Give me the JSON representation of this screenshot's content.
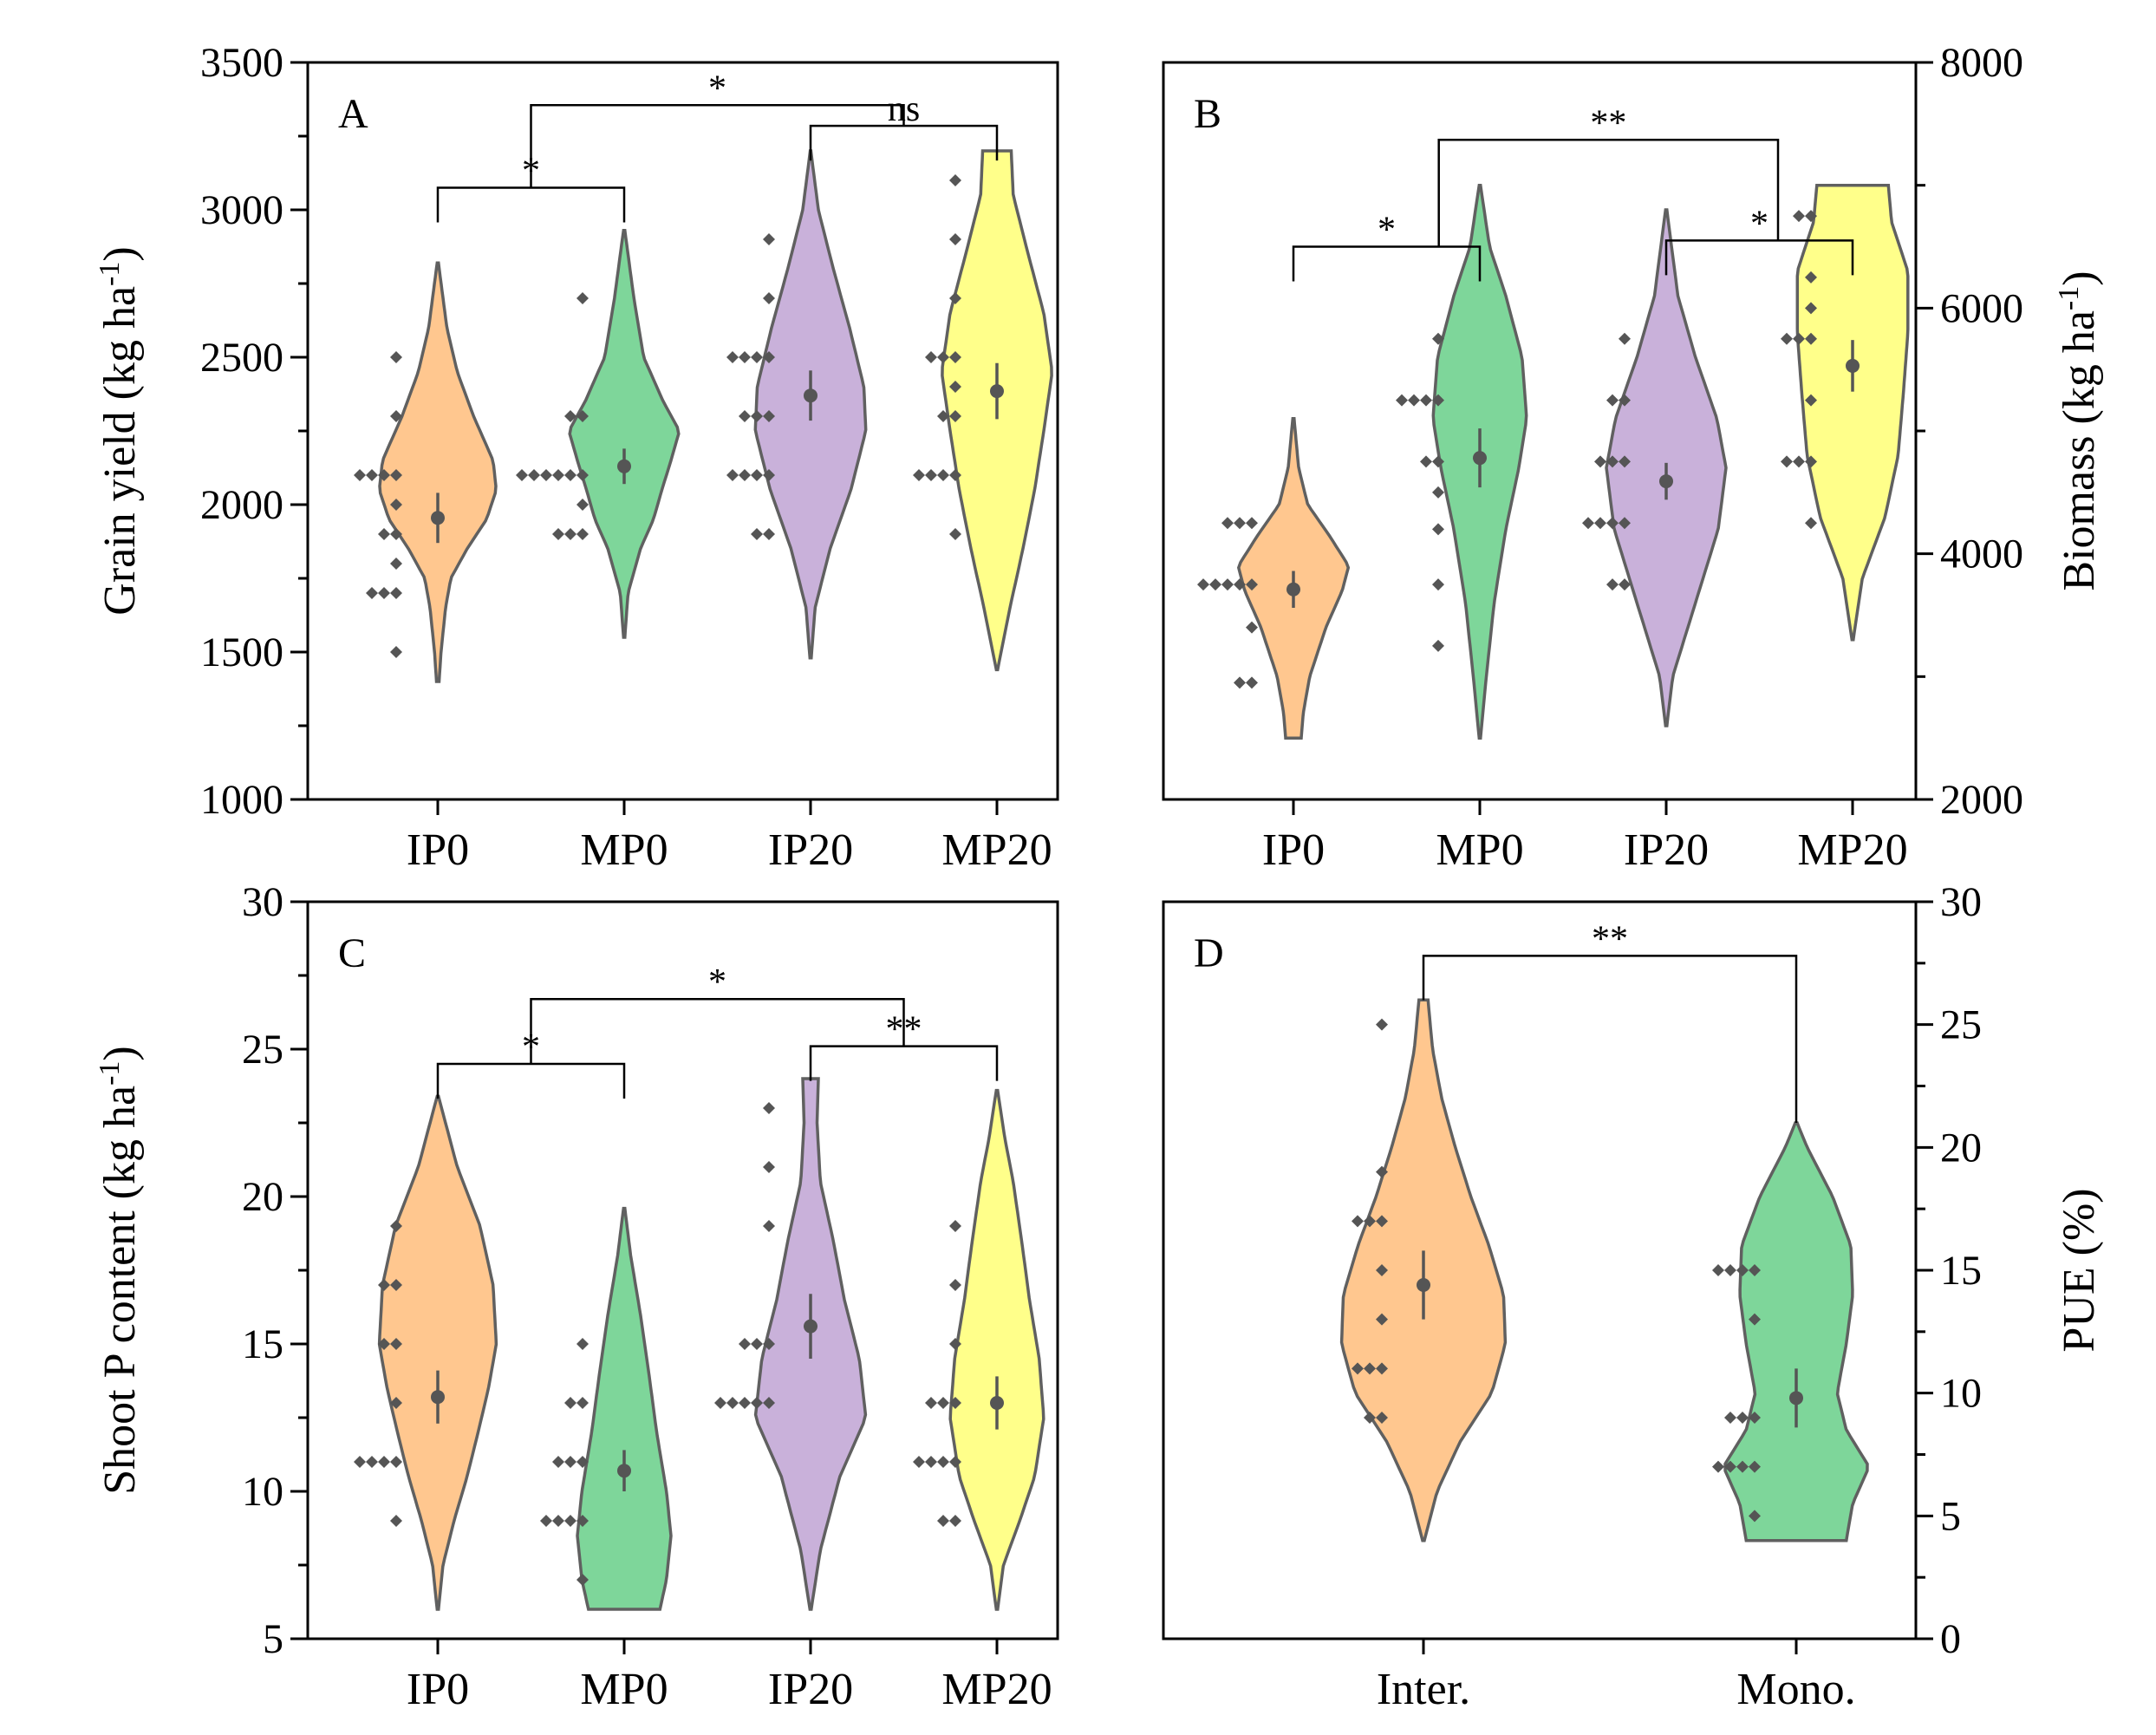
{
  "chart_data": [
    {
      "type": "violin",
      "panel": "A",
      "axis_side": "left",
      "ylabel": "Grain yield (kg ha-1)",
      "ylabel_base": "Grain yield (kg ha",
      "ylabel_sup": "-1",
      "ylabel_close": ")",
      "ylim": [
        1000,
        3500
      ],
      "yticks": [
        1000,
        1500,
        2000,
        2500,
        3000,
        3500
      ],
      "categories": [
        "IP0",
        "MP0",
        "IP20",
        "MP20"
      ],
      "colors": [
        "#FFC78F",
        "#7ED69A",
        "#C9B1DA",
        "#FFFF8A"
      ],
      "series": [
        {
          "name": "IP0",
          "mean": 1955,
          "err": 85,
          "vmin": 1400,
          "vmax": 2820,
          "points": [
            2500,
            2300,
            2100,
            2100,
            2100,
            2100,
            2000,
            1900,
            1900,
            1800,
            1700,
            1700,
            1700,
            1500
          ],
          "profile": [
            [
              1400,
              0.02
            ],
            [
              1500,
              0.05
            ],
            [
              1650,
              0.12
            ],
            [
              1750,
              0.2
            ],
            [
              1850,
              0.45
            ],
            [
              1950,
              0.75
            ],
            [
              2050,
              0.9
            ],
            [
              2150,
              0.85
            ],
            [
              2300,
              0.55
            ],
            [
              2450,
              0.3
            ],
            [
              2600,
              0.14
            ],
            [
              2820,
              0.01
            ]
          ]
        },
        {
          "name": "MP0",
          "mean": 2130,
          "err": 60,
          "vmin": 1550,
          "vmax": 2930,
          "points": [
            2700,
            2300,
            2300,
            2100,
            2100,
            2100,
            2100,
            2100,
            2100,
            2000,
            1900,
            1900,
            1900
          ],
          "profile": [
            [
              1550,
              0.01
            ],
            [
              1700,
              0.06
            ],
            [
              1850,
              0.25
            ],
            [
              1950,
              0.45
            ],
            [
              2050,
              0.58
            ],
            [
              2150,
              0.72
            ],
            [
              2250,
              0.85
            ],
            [
              2350,
              0.6
            ],
            [
              2500,
              0.3
            ],
            [
              2700,
              0.15
            ],
            [
              2930,
              0.01
            ]
          ]
        },
        {
          "name": "IP20",
          "mean": 2370,
          "err": 85,
          "vmin": 1480,
          "vmax": 3200,
          "points": [
            2900,
            2700,
            2500,
            2500,
            2500,
            2500,
            2300,
            2300,
            2300,
            2100,
            2100,
            2100,
            2100,
            1900,
            1900
          ],
          "profile": [
            [
              1480,
              0.01
            ],
            [
              1650,
              0.07
            ],
            [
              1850,
              0.3
            ],
            [
              2050,
              0.62
            ],
            [
              2250,
              0.85
            ],
            [
              2400,
              0.82
            ],
            [
              2600,
              0.6
            ],
            [
              2800,
              0.35
            ],
            [
              3000,
              0.12
            ],
            [
              3200,
              0.005
            ]
          ]
        },
        {
          "name": "MP20",
          "mean": 2385,
          "err": 95,
          "vmin": 1440,
          "vmax": 3200,
          "points": [
            3100,
            2900,
            2700,
            2500,
            2500,
            2500,
            2400,
            2300,
            2300,
            2100,
            2100,
            2100,
            2100,
            1900
          ],
          "profile": [
            [
              1440,
              0.01
            ],
            [
              1650,
              0.2
            ],
            [
              1850,
              0.4
            ],
            [
              2050,
              0.58
            ],
            [
              2250,
              0.72
            ],
            [
              2450,
              0.85
            ],
            [
              2650,
              0.72
            ],
            [
              2850,
              0.48
            ],
            [
              3050,
              0.25
            ],
            [
              3200,
              0.22
            ]
          ]
        }
      ],
      "significance": [
        {
          "type": "pair",
          "x1": 0,
          "x2": 1,
          "y": 3075,
          "label": "*"
        },
        {
          "type": "pair",
          "x1": 2,
          "x2": 3,
          "y": 3285,
          "label": "ns"
        },
        {
          "type": "group",
          "x1": 0.5,
          "x2": 2.5,
          "y": 3355,
          "y1": 3075,
          "y2": 3285,
          "label": "*"
        }
      ]
    },
    {
      "type": "violin",
      "panel": "B",
      "axis_side": "right",
      "ylabel": "Biomass (kg ha-1)",
      "ylabel_base": "Biomass (kg ha",
      "ylabel_sup": "-1",
      "ylabel_close": ")",
      "ylim": [
        2000,
        8000
      ],
      "yticks": [
        2000,
        4000,
        6000,
        8000
      ],
      "yminor": [
        3000,
        5000,
        7000
      ],
      "categories": [
        "IP0",
        "MP0",
        "IP20",
        "MP20"
      ],
      "colors": [
        "#FFC78F",
        "#7ED69A",
        "#C9B1DA",
        "#FFFF8A"
      ],
      "series": [
        {
          "name": "IP0",
          "mean": 3710,
          "err": 150,
          "vmin": 2500,
          "vmax": 5100,
          "points": [
            4250,
            4250,
            4250,
            3750,
            3750,
            3750,
            3750,
            3750,
            3400,
            2950,
            2950
          ],
          "profile": [
            [
              2500,
              0.12
            ],
            [
              2700,
              0.15
            ],
            [
              3000,
              0.25
            ],
            [
              3400,
              0.5
            ],
            [
              3700,
              0.75
            ],
            [
              3900,
              0.85
            ],
            [
              4150,
              0.55
            ],
            [
              4400,
              0.22
            ],
            [
              4700,
              0.08
            ],
            [
              5100,
              0.01
            ]
          ]
        },
        {
          "name": "MP0",
          "mean": 4780,
          "err": 240,
          "vmin": 2500,
          "vmax": 7000,
          "points": [
            5750,
            5250,
            5250,
            5250,
            5250,
            4750,
            4750,
            4500,
            4200,
            3750,
            3250
          ],
          "profile": [
            [
              2500,
              0.01
            ],
            [
              3000,
              0.1
            ],
            [
              3600,
              0.22
            ],
            [
              4200,
              0.4
            ],
            [
              4700,
              0.6
            ],
            [
              5100,
              0.72
            ],
            [
              5600,
              0.65
            ],
            [
              6100,
              0.4
            ],
            [
              6500,
              0.15
            ],
            [
              7000,
              0.01
            ]
          ]
        },
        {
          "name": "IP20",
          "mean": 4590,
          "err": 150,
          "vmin": 2600,
          "vmax": 6800,
          "points": [
            5750,
            5250,
            5250,
            4750,
            4750,
            4750,
            4250,
            4250,
            4250,
            4250,
            3750,
            3750
          ],
          "profile": [
            [
              2600,
              0.01
            ],
            [
              3000,
              0.1
            ],
            [
              3600,
              0.45
            ],
            [
              4200,
              0.8
            ],
            [
              4700,
              0.92
            ],
            [
              5100,
              0.78
            ],
            [
              5600,
              0.45
            ],
            [
              6100,
              0.18
            ],
            [
              6800,
              0.01
            ]
          ]
        },
        {
          "name": "MP20",
          "mean": 5530,
          "err": 210,
          "vmin": 3300,
          "vmax": 7000,
          "points": [
            6750,
            6750,
            6250,
            6000,
            5750,
            5750,
            5750,
            5250,
            4750,
            4750,
            4750,
            4250
          ],
          "profile": [
            [
              3300,
              0.01
            ],
            [
              3800,
              0.15
            ],
            [
              4300,
              0.5
            ],
            [
              4800,
              0.7
            ],
            [
              5300,
              0.78
            ],
            [
              5800,
              0.85
            ],
            [
              6300,
              0.85
            ],
            [
              6700,
              0.6
            ],
            [
              7000,
              0.55
            ]
          ]
        }
      ],
      "significance": [
        {
          "type": "pair",
          "x1": 0,
          "x2": 1,
          "y": 6500,
          "label": "*"
        },
        {
          "type": "pair",
          "x1": 2,
          "x2": 3,
          "y": 6550,
          "label": "*"
        },
        {
          "type": "group",
          "x1": 0.78,
          "x2": 2.6,
          "y": 7370,
          "y1": 6500,
          "y2": 6550,
          "label": "**"
        }
      ]
    },
    {
      "type": "violin",
      "panel": "C",
      "axis_side": "left",
      "ylabel": "Shoot P content (kg ha-1)",
      "ylabel_base": "Shoot P content (kg ha",
      "ylabel_sup": "-1",
      "ylabel_close": ")",
      "ylim": [
        5,
        30
      ],
      "yticks": [
        5,
        10,
        15,
        20,
        25,
        30
      ],
      "categories": [
        "IP0",
        "MP0",
        "IP20",
        "MP20"
      ],
      "colors": [
        "#FFC78F",
        "#7ED69A",
        "#C9B1DA",
        "#FFFF8A"
      ],
      "series": [
        {
          "name": "IP0",
          "mean": 13.2,
          "err": 0.9,
          "vmin": 6,
          "vmax": 23.4,
          "points": [
            19,
            17,
            17,
            15,
            15,
            13,
            11,
            11,
            11,
            11,
            9
          ],
          "profile": [
            [
              6,
              0.01
            ],
            [
              7.5,
              0.08
            ],
            [
              9,
              0.25
            ],
            [
              10.5,
              0.45
            ],
            [
              12,
              0.62
            ],
            [
              13.5,
              0.78
            ],
            [
              15,
              0.9
            ],
            [
              17,
              0.85
            ],
            [
              19,
              0.65
            ],
            [
              21,
              0.3
            ],
            [
              23.4,
              0.01
            ]
          ]
        },
        {
          "name": "MP0",
          "mean": 10.7,
          "err": 0.7,
          "vmin": 6,
          "vmax": 19.6,
          "points": [
            15,
            13,
            13,
            11,
            11,
            11,
            9,
            9,
            9,
            9,
            7
          ],
          "profile": [
            [
              6,
              0.55
            ],
            [
              7,
              0.65
            ],
            [
              8.5,
              0.72
            ],
            [
              10,
              0.65
            ],
            [
              12,
              0.5
            ],
            [
              14,
              0.38
            ],
            [
              16,
              0.25
            ],
            [
              18,
              0.1
            ],
            [
              19.6,
              0.01
            ]
          ]
        },
        {
          "name": "IP20",
          "mean": 15.6,
          "err": 1.1,
          "vmin": 6,
          "vmax": 24,
          "points": [
            23,
            21,
            19,
            15,
            15,
            15,
            13,
            13,
            13,
            13,
            13
          ],
          "profile": [
            [
              6,
              0.01
            ],
            [
              8,
              0.15
            ],
            [
              10.5,
              0.45
            ],
            [
              12.5,
              0.85
            ],
            [
              14.5,
              0.75
            ],
            [
              16.5,
              0.52
            ],
            [
              18.5,
              0.35
            ],
            [
              20.5,
              0.15
            ],
            [
              22.5,
              0.1
            ],
            [
              24,
              0.12
            ]
          ]
        },
        {
          "name": "MP20",
          "mean": 13.0,
          "err": 0.9,
          "vmin": 6,
          "vmax": 23.6,
          "points": [
            19,
            17,
            15,
            13,
            13,
            13,
            11,
            11,
            11,
            11,
            9,
            9
          ],
          "profile": [
            [
              6,
              0.01
            ],
            [
              7.5,
              0.1
            ],
            [
              9,
              0.35
            ],
            [
              10.5,
              0.58
            ],
            [
              12.5,
              0.72
            ],
            [
              14.5,
              0.65
            ],
            [
              16.5,
              0.5
            ],
            [
              18.5,
              0.38
            ],
            [
              20.5,
              0.25
            ],
            [
              22,
              0.12
            ],
            [
              23.6,
              0.01
            ]
          ]
        }
      ],
      "significance": [
        {
          "type": "pair",
          "x1": 0,
          "x2": 1,
          "y": 24.5,
          "label": "*"
        },
        {
          "type": "pair",
          "x1": 2,
          "x2": 3,
          "y": 25.1,
          "label": "**"
        },
        {
          "type": "group",
          "x1": 0.5,
          "x2": 2.5,
          "y": 26.7,
          "y1": 24.5,
          "y2": 25.1,
          "label": "*"
        }
      ]
    },
    {
      "type": "violin",
      "panel": "D",
      "axis_side": "right",
      "ylabel": "PUE (%)",
      "ylim": [
        0,
        30
      ],
      "yticks": [
        0,
        5,
        10,
        15,
        20,
        25,
        30
      ],
      "yminor": [
        2.5,
        7.5,
        12.5,
        17.5,
        22.5,
        27.5
      ],
      "categories": [
        "Inter.",
        "Mono."
      ],
      "colors": [
        "#FFC78F",
        "#7ED69A"
      ],
      "series": [
        {
          "name": "Inter.",
          "mean": 14.4,
          "err": 1.4,
          "vmin": 4,
          "vmax": 26,
          "points": [
            25,
            19,
            17,
            17,
            17,
            15,
            13,
            11,
            11,
            11,
            9,
            9
          ],
          "profile": [
            [
              4,
              0.01
            ],
            [
              6,
              0.15
            ],
            [
              8,
              0.4
            ],
            [
              10,
              0.75
            ],
            [
              12,
              0.9
            ],
            [
              14,
              0.88
            ],
            [
              16,
              0.72
            ],
            [
              18,
              0.52
            ],
            [
              20,
              0.35
            ],
            [
              22,
              0.2
            ],
            [
              24,
              0.1
            ],
            [
              26,
              0.05
            ]
          ]
        },
        {
          "name": "Mono.",
          "mean": 9.8,
          "err": 1.2,
          "vmin": 4,
          "vmax": 21,
          "points": [
            15,
            15,
            15,
            15,
            13,
            9,
            9,
            9,
            7,
            7,
            7,
            7,
            5
          ],
          "profile": [
            [
              4,
              0.55
            ],
            [
              5.5,
              0.62
            ],
            [
              7,
              0.8
            ],
            [
              8.5,
              0.55
            ],
            [
              10,
              0.45
            ],
            [
              12,
              0.55
            ],
            [
              14,
              0.62
            ],
            [
              16,
              0.6
            ],
            [
              18,
              0.4
            ],
            [
              20,
              0.12
            ],
            [
              21,
              0.01
            ]
          ]
        }
      ],
      "significance": [
        {
          "type": "pair",
          "x1": 0,
          "x2": 1,
          "y": 27.8,
          "y1": 26,
          "y2": 21,
          "label": "**"
        }
      ]
    }
  ]
}
